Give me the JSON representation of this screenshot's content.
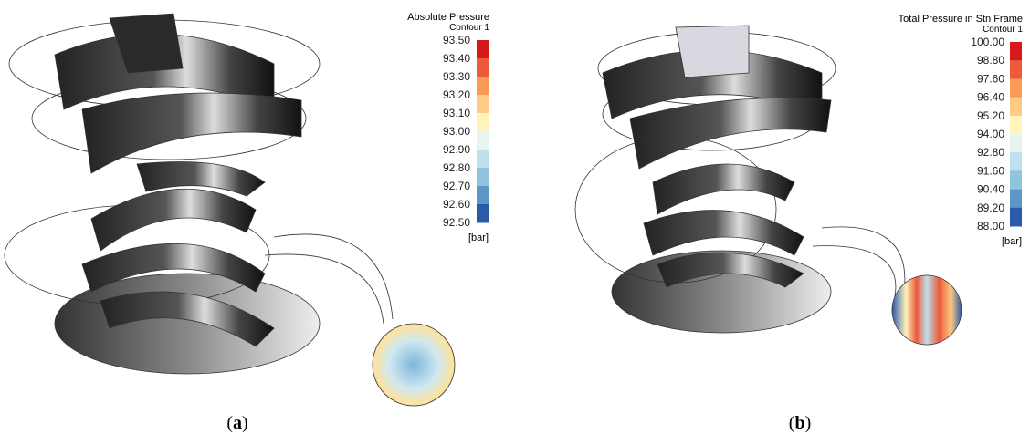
{
  "panels": [
    {
      "legend": {
        "title": "Absolute Pressure",
        "subtitle": "Contour 1",
        "labels": [
          "93.50",
          "93.40",
          "93.30",
          "93.20",
          "93.10",
          "93.00",
          "92.90",
          "92.80",
          "92.70",
          "92.60",
          "92.50"
        ],
        "unit": "[bar]"
      },
      "caption": {
        "open": "(",
        "letter": "a",
        "close": ")"
      }
    },
    {
      "legend": {
        "title": "Total Pressure in Stn Frame",
        "subtitle": "Contour 1",
        "labels": [
          "100.00",
          "98.80",
          "97.60",
          "96.40",
          "95.20",
          "94.00",
          "92.80",
          "91.60",
          "90.40",
          "89.20",
          "88.00"
        ],
        "unit": "[bar]"
      },
      "caption": {
        "open": "(",
        "letter": "b",
        "close": ")"
      }
    }
  ],
  "colors": [
    "#d7191c",
    "#ec5a3b",
    "#f99b55",
    "#fdcb83",
    "#fff4bb",
    "#e8f5ee",
    "#bfe0ec",
    "#90c4dd",
    "#5d97c8",
    "#2c5aa8"
  ]
}
